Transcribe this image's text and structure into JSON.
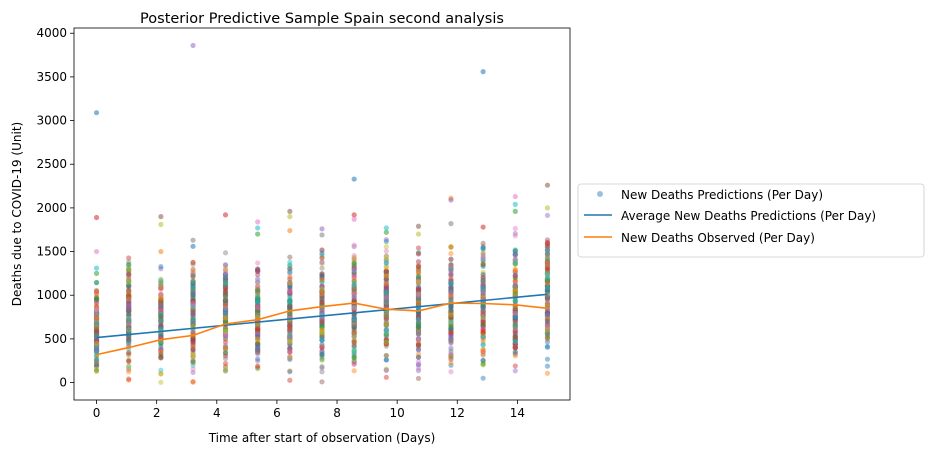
{
  "chart_data": {
    "type": "scatter",
    "title": "Posterior Predictive Sample Spain second analysis",
    "xlabel": "Time after start of observation (Days)",
    "ylabel": "Deaths due to COVID-19 (Unit)",
    "xlim": [
      -0.75,
      15.75
    ],
    "ylim": [
      -200,
      4060
    ],
    "xticks": [
      0,
      2,
      4,
      6,
      8,
      10,
      12,
      14
    ],
    "yticks": [
      0,
      500,
      1000,
      1500,
      2000,
      2500,
      3000,
      3500,
      4000
    ],
    "x_days": [
      0,
      1.07,
      2.14,
      3.21,
      4.29,
      5.36,
      6.43,
      7.5,
      8.57,
      9.64,
      10.71,
      11.79,
      12.86,
      13.93,
      15
    ],
    "legend": {
      "position": "outside-right",
      "entries": [
        "New Deaths Predictions (Per Day)",
        "Average New Deaths Predictions (Per Day)",
        "New Deaths Observed (Per Day)"
      ]
    },
    "series": [
      {
        "name": "Average New Deaths Predictions (Per Day)",
        "kind": "line",
        "color": "#1f77b4",
        "x": [
          0,
          15
        ],
        "y": [
          515,
          1010
        ]
      },
      {
        "name": "New Deaths Observed (Per Day)",
        "kind": "line",
        "color": "#ff7f0e",
        "x": [
          0,
          1.07,
          2.14,
          3.21,
          4.29,
          5.36,
          6.43,
          7.5,
          8.57,
          9.64,
          10.71,
          11.79,
          12.86,
          13.93,
          15
        ],
        "y": [
          320,
          400,
          490,
          540,
          670,
          720,
          820,
          870,
          910,
          840,
          820,
          910,
          905,
          890,
          850
        ]
      }
    ],
    "prediction_spread": {
      "name": "New Deaths Predictions (Per Day)",
      "kind": "scatter",
      "alpha": 0.45,
      "dense_ranges": [
        [
          0,
          1150
        ],
        [
          0,
          1460
        ],
        [
          0,
          1390
        ],
        [
          0,
          1500
        ],
        [
          0,
          1520
        ],
        [
          0,
          1420
        ],
        [
          0,
          1480
        ],
        [
          0,
          1560
        ],
        [
          0,
          1640
        ],
        [
          0,
          1680
        ],
        [
          0,
          1620
        ],
        [
          0,
          1640
        ],
        [
          0,
          1700
        ],
        [
          0,
          1820
        ],
        [
          0,
          1980
        ]
      ],
      "outliers": [
        {
          "x": 0,
          "y": 3090
        },
        {
          "x": 0,
          "y": 1890
        },
        {
          "x": 0,
          "y": 1500
        },
        {
          "x": 0,
          "y": 1310
        },
        {
          "x": 0,
          "y": 1250
        },
        {
          "x": 2.14,
          "y": 1900
        },
        {
          "x": 2.14,
          "y": 1810
        },
        {
          "x": 2.14,
          "y": 1500
        },
        {
          "x": 3.21,
          "y": 3860
        },
        {
          "x": 3.21,
          "y": 1630
        },
        {
          "x": 3.21,
          "y": 1560
        },
        {
          "x": 4.29,
          "y": 1920
        },
        {
          "x": 5.36,
          "y": 1840
        },
        {
          "x": 5.36,
          "y": 1770
        },
        {
          "x": 5.36,
          "y": 1700
        },
        {
          "x": 6.43,
          "y": 1960
        },
        {
          "x": 6.43,
          "y": 1900
        },
        {
          "x": 6.43,
          "y": 1740
        },
        {
          "x": 7.5,
          "y": 1760
        },
        {
          "x": 7.5,
          "y": 1690
        },
        {
          "x": 8.57,
          "y": 2330
        },
        {
          "x": 8.57,
          "y": 1920
        },
        {
          "x": 8.57,
          "y": 1870
        },
        {
          "x": 9.64,
          "y": 1770
        },
        {
          "x": 9.64,
          "y": 1720
        },
        {
          "x": 10.71,
          "y": 1790
        },
        {
          "x": 10.71,
          "y": 1700
        },
        {
          "x": 11.79,
          "y": 2110
        },
        {
          "x": 11.79,
          "y": 2090
        },
        {
          "x": 11.79,
          "y": 1820
        },
        {
          "x": 12.86,
          "y": 3560
        },
        {
          "x": 12.86,
          "y": 1780
        },
        {
          "x": 13.93,
          "y": 2130
        },
        {
          "x": 13.93,
          "y": 2040
        },
        {
          "x": 13.93,
          "y": 1960
        },
        {
          "x": 15,
          "y": 2260
        },
        {
          "x": 15,
          "y": 2000
        }
      ]
    }
  }
}
